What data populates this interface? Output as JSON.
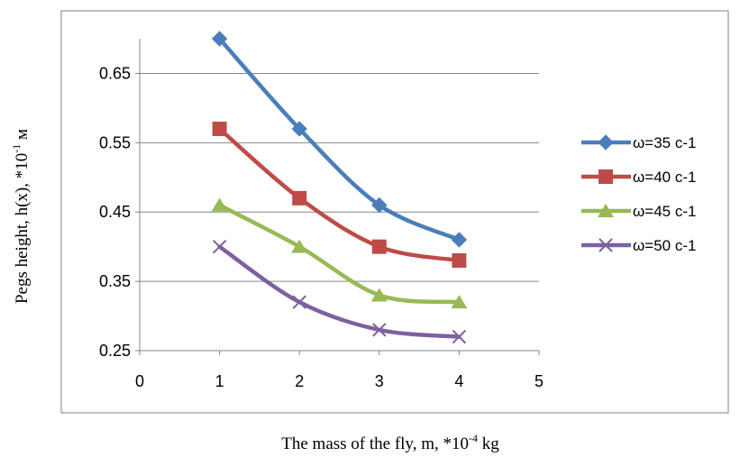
{
  "chart_data": {
    "type": "line",
    "title": "",
    "xlabel": "The mass of the fly, m,  *10",
    "xlabel_exp": "-4",
    "xlabel_unit": " kg",
    "ylabel": "Pegs height, h(x), *10",
    "ylabel_exp": "-1",
    "ylabel_unit": " м",
    "xlim": [
      0,
      5
    ],
    "ylim": [
      0.25,
      0.7
    ],
    "x_ticks": [
      "0",
      "1",
      "2",
      "3",
      "4",
      "5"
    ],
    "y_ticks": [
      "0.25",
      "0.35",
      "0.45",
      "0.55",
      "0.65"
    ],
    "grid": "horizontal",
    "legend": "right",
    "x": [
      1,
      2,
      3,
      4
    ],
    "series": [
      {
        "name": "ω=35 с-1",
        "values": [
          0.7,
          0.57,
          0.46,
          0.41
        ],
        "color": "#4a7ebb",
        "marker": "diamond"
      },
      {
        "name": "ω=40 с-1",
        "values": [
          0.57,
          0.47,
          0.4,
          0.38
        ],
        "color": "#be4b48",
        "marker": "square"
      },
      {
        "name": "ω=45 с-1",
        "values": [
          0.46,
          0.4,
          0.33,
          0.32
        ],
        "color": "#98b954",
        "marker": "triangle"
      },
      {
        "name": "ω=50 с-1",
        "values": [
          0.4,
          0.32,
          0.28,
          0.27
        ],
        "color": "#7d60a0",
        "marker": "x"
      }
    ]
  }
}
